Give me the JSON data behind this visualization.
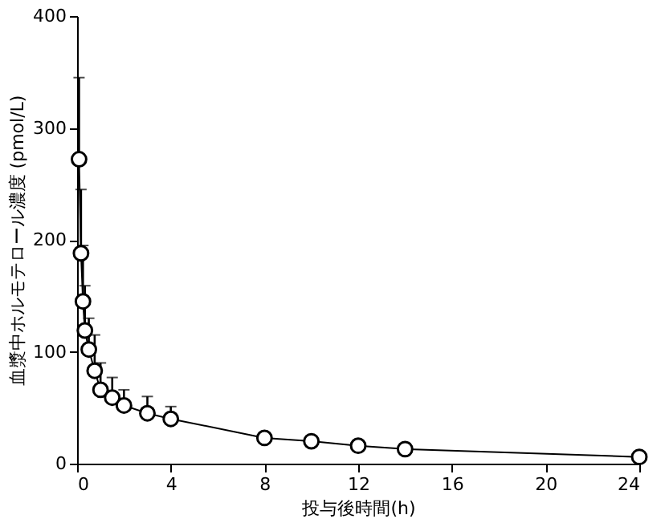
{
  "chart_data": {
    "type": "line",
    "xlabel": "投与後時間(h)",
    "ylabel": "血漿中ホルモテロール濃度 (pmol/L)",
    "x": [
      0.083,
      0.167,
      0.25,
      0.333,
      0.5,
      0.75,
      1,
      1.5,
      2,
      3,
      4,
      8,
      10,
      12,
      14,
      24
    ],
    "series": [
      {
        "color": "#000000",
        "values": [
          272,
          188,
          145,
          119,
          102,
          83,
          66,
          59,
          52,
          45,
          40,
          23,
          20,
          16,
          13,
          6
        ],
        "errors": [
          [
            272,
            345
          ],
          [
            188,
            245
          ],
          [
            145,
            195
          ],
          [
            119,
            159
          ],
          [
            102,
            130
          ],
          [
            83,
            115
          ],
          [
            66,
            90
          ],
          [
            59,
            77
          ],
          [
            52,
            66
          ],
          [
            45,
            60
          ],
          [
            40,
            51
          ],
          null,
          null,
          null,
          null,
          null
        ]
      }
    ],
    "xlim": [
      0,
      24
    ],
    "xticks": [
      0,
      4,
      8,
      12,
      16,
      20,
      24
    ],
    "ylim": [
      0,
      400
    ],
    "yticks": [
      0,
      100,
      200,
      300,
      400
    ],
    "grid": false,
    "marker": "circle",
    "line_style": "solid"
  }
}
